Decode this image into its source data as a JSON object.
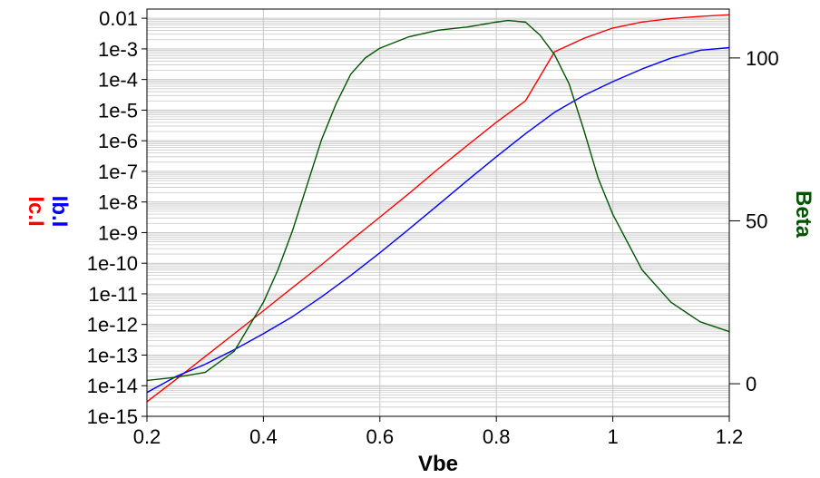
{
  "chart_data": {
    "type": "line",
    "xlabel": "Vbe",
    "ylabel_left": [
      "Ic.I",
      "Ib.I"
    ],
    "ylabel_right": "Beta",
    "xlim": [
      0.2,
      1.2
    ],
    "ylim_left": [
      1e-15,
      0.02
    ],
    "yscale_left": "log",
    "ylim_right": [
      -10,
      115
    ],
    "grid": true,
    "x_ticks": [
      "0.2",
      "0.4",
      "0.6",
      "0.8",
      "1",
      "1.2"
    ],
    "x_tick_values": [
      0.2,
      0.4,
      0.6,
      0.8,
      1.0,
      1.2
    ],
    "y_left_ticks": [
      "1e-15",
      "1e-14",
      "1e-13",
      "1e-12",
      "1e-11",
      "1e-10",
      "1e-9",
      "1e-8",
      "1e-7",
      "1e-6",
      "1e-5",
      "1e-4",
      "1e-3",
      "0.01"
    ],
    "y_left_tick_exponents": [
      -15,
      -14,
      -13,
      -12,
      -11,
      -10,
      -9,
      -8,
      -7,
      -6,
      -5,
      -4,
      -3,
      -2
    ],
    "y_right_ticks": [
      "0",
      "50",
      "100"
    ],
    "y_right_tick_values": [
      0,
      50,
      100
    ],
    "colors": {
      "Ic.I": "#ff0000",
      "Ib.I": "#0000ff",
      "Beta": "#005500",
      "grid": "#c8c8c8",
      "axis": "#000000"
    },
    "series": [
      {
        "name": "Ic.I",
        "axis": "left",
        "x": [
          0.2,
          0.25,
          0.3,
          0.35,
          0.4,
          0.45,
          0.5,
          0.55,
          0.6,
          0.65,
          0.7,
          0.75,
          0.8,
          0.85,
          0.9,
          0.95,
          1.0,
          1.05,
          1.1,
          1.15,
          1.2
        ],
        "y": [
          3e-15,
          1.6e-14,
          9e-14,
          5e-13,
          2.8e-12,
          1.6e-11,
          9e-11,
          5.5e-10,
          3.2e-09,
          1.9e-08,
          1.2e-07,
          7e-07,
          4e-06,
          2e-05,
          0.0008,
          0.0022,
          0.0048,
          0.0075,
          0.0098,
          0.0115,
          0.013
        ]
      },
      {
        "name": "Ib.I",
        "axis": "left",
        "x": [
          0.2,
          0.25,
          0.3,
          0.35,
          0.4,
          0.45,
          0.5,
          0.55,
          0.6,
          0.65,
          0.7,
          0.75,
          0.8,
          0.85,
          0.9,
          0.95,
          1.0,
          1.05,
          1.1,
          1.15,
          1.2
        ],
        "y": [
          6e-15,
          2e-14,
          5e-14,
          1.5e-13,
          5e-13,
          1.8e-12,
          8e-12,
          4e-11,
          2.2e-10,
          1.3e-09,
          8e-09,
          5e-08,
          3e-07,
          1.7e-06,
          8.5e-06,
          3e-05,
          8.5e-05,
          0.00022,
          0.0005,
          0.0009,
          0.0011
        ]
      },
      {
        "name": "Beta",
        "axis": "right",
        "x": [
          0.2,
          0.25,
          0.3,
          0.35,
          0.4,
          0.425,
          0.45,
          0.475,
          0.5,
          0.525,
          0.55,
          0.575,
          0.6,
          0.65,
          0.7,
          0.75,
          0.8,
          0.82,
          0.85,
          0.875,
          0.9,
          0.925,
          0.95,
          0.975,
          1.0,
          1.05,
          1.1,
          1.15,
          1.2
        ],
        "y": [
          1,
          2,
          3.5,
          10,
          25,
          35,
          47,
          61,
          75,
          86,
          95,
          100,
          103,
          106.5,
          108.5,
          109.5,
          111,
          111.5,
          111,
          107,
          101,
          92,
          78,
          63,
          52,
          35,
          25,
          19,
          16
        ]
      }
    ]
  }
}
